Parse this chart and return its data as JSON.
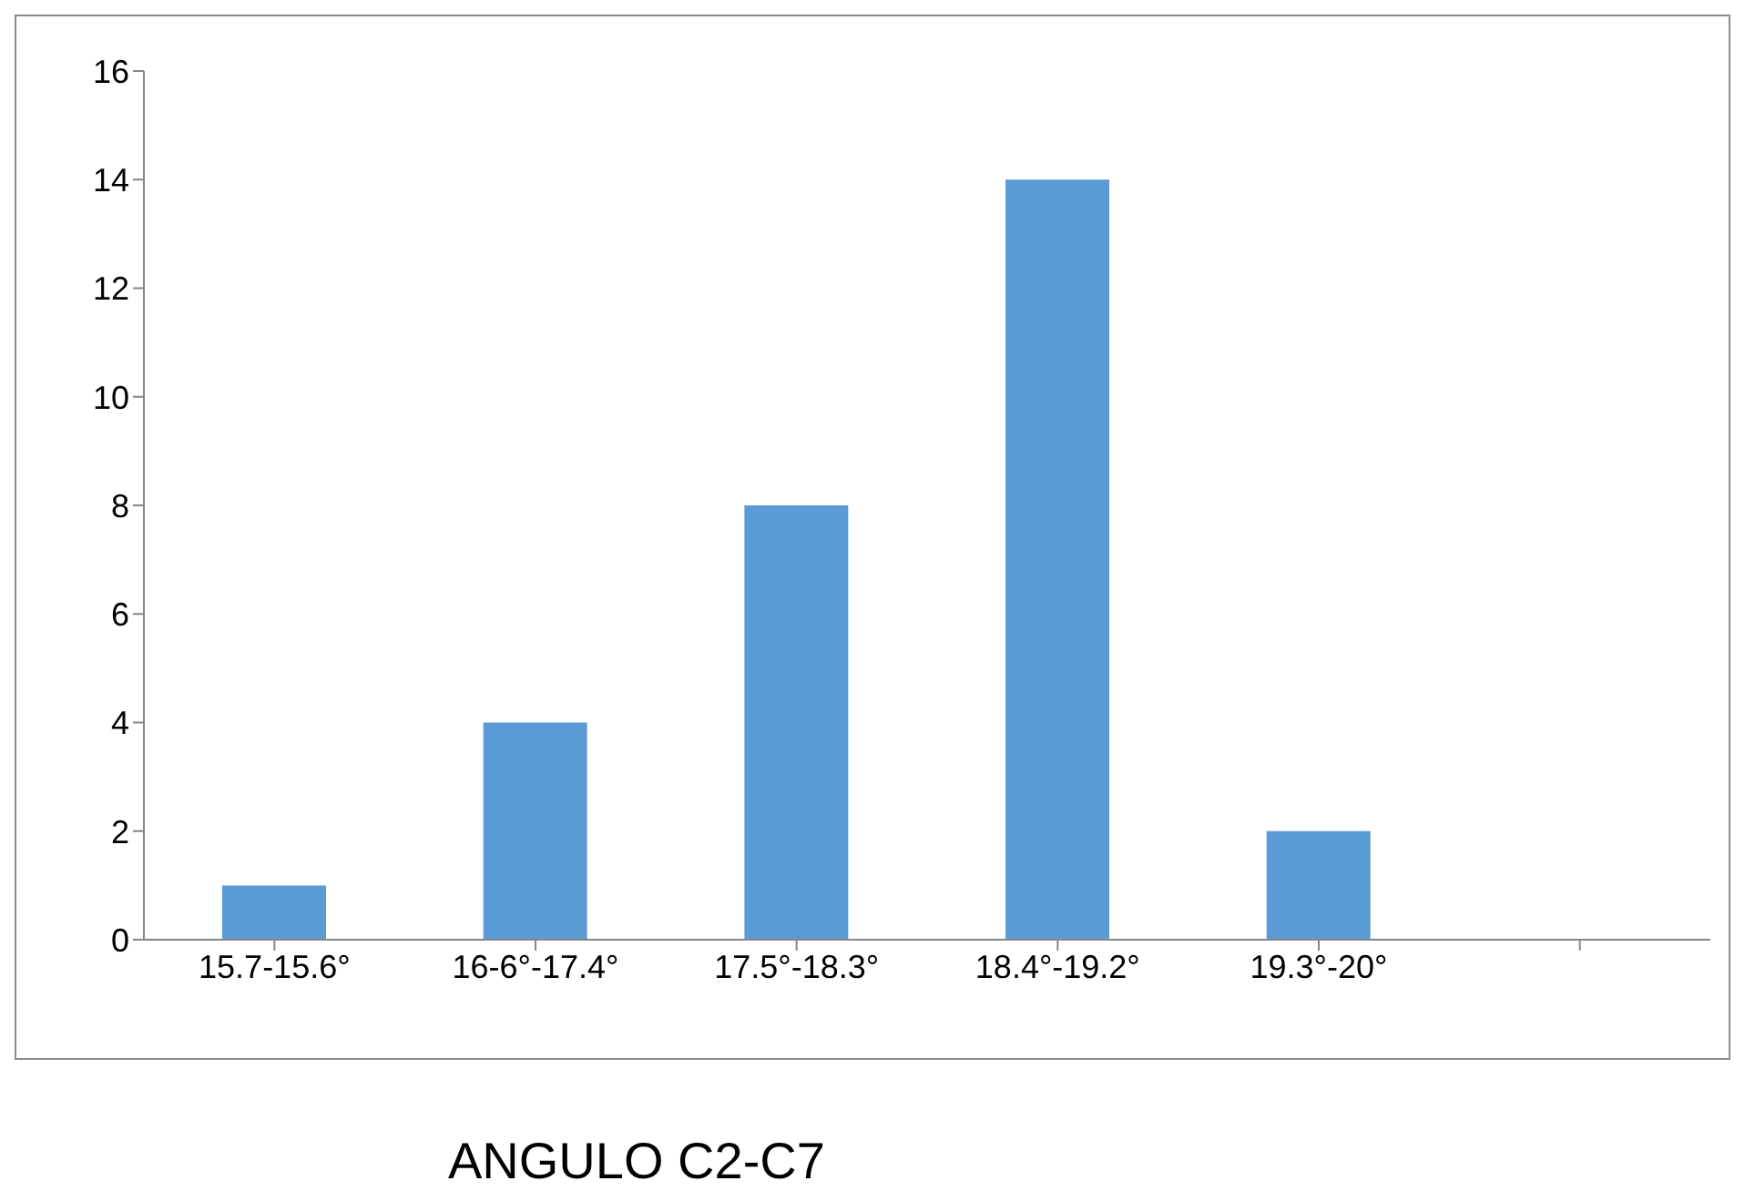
{
  "chart_data": {
    "type": "bar",
    "xlabel": "ANGULO C2-C7",
    "categories": [
      "15.7-15.6°",
      "16-6°-17.4°",
      "17.5°-18.3°",
      "18.4°-19.2°",
      "19.3°-20°",
      null
    ],
    "values": [
      1,
      4,
      8,
      14,
      2,
      null
    ],
    "color": "#5b9bd5",
    "ylim": [
      0,
      16
    ],
    "yticks": [
      0,
      2,
      4,
      6,
      8,
      10,
      12,
      14,
      16
    ],
    "grid": false,
    "legend": false
  }
}
